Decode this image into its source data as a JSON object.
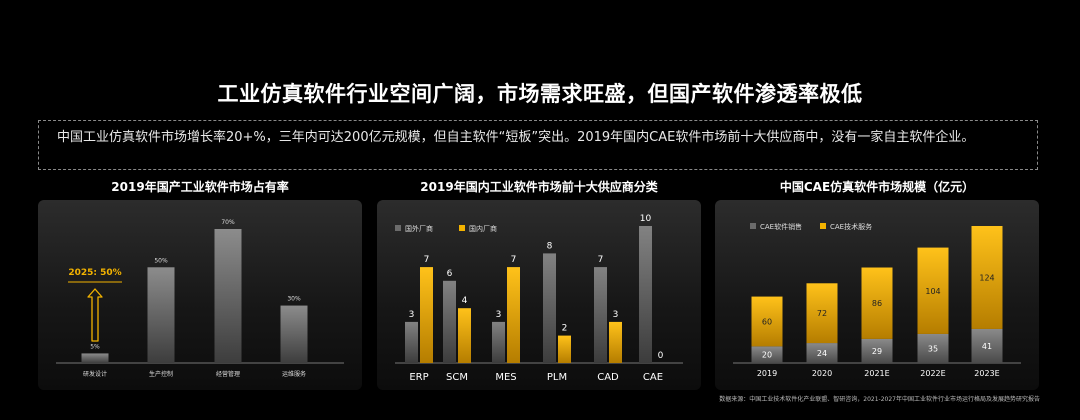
{
  "title": "工业仿真软件行业空间广阔，市场需求旺盛，但国产软件渗透率极低",
  "intro": "中国工业仿真软件市场增长率20+%，三年内可达200亿元规模，但自主软件“短板”突出。2019年国内CAE软件市场前十大供应商中，没有一家自主软件企业。",
  "source": "数据来源：中国工业技术软件化产业联盟、智研咨询，2021-2027年中国工业软件行业市场运行格局及发展趋势研究报告",
  "colors": {
    "gray": "#6b6b6b",
    "gold": "#f3b300",
    "axis": "#777777"
  },
  "chart_data": [
    {
      "type": "bar",
      "title": "2019年国产工业软件市场占有率",
      "categories": [
        "研发设计",
        "生产控制",
        "经营管理",
        "运维服务"
      ],
      "values": [
        5,
        50,
        70,
        30
      ],
      "data_labels": [
        "5%",
        "50%",
        "70%",
        "30%"
      ],
      "ylim": [
        0,
        70
      ],
      "annotation": "2025: 50%"
    },
    {
      "type": "bar",
      "title": "2019年国内工业软件市场前十大供应商分类",
      "categories": [
        "ERP",
        "SCM",
        "MES",
        "PLM",
        "CAD",
        "CAE"
      ],
      "series": [
        {
          "name": "国外厂商",
          "values": [
            3,
            6,
            3,
            8,
            7,
            10
          ]
        },
        {
          "name": "国内厂商",
          "values": [
            7,
            4,
            7,
            2,
            3,
            0
          ]
        }
      ],
      "ylim": [
        0,
        10
      ],
      "legend": "top-left"
    },
    {
      "type": "bar",
      "stacked": true,
      "title": "中国CAE仿真软件市场规模（亿元）",
      "categories": [
        "2019",
        "2020",
        "2021E",
        "2022E",
        "2023E"
      ],
      "series": [
        {
          "name": "CAE软件销售",
          "values": [
            20,
            24,
            29,
            35,
            41
          ]
        },
        {
          "name": "CAE技术服务",
          "values": [
            60,
            72,
            86,
            104,
            124
          ]
        }
      ],
      "ylim": [
        0,
        165
      ],
      "legend": "top-left"
    }
  ]
}
